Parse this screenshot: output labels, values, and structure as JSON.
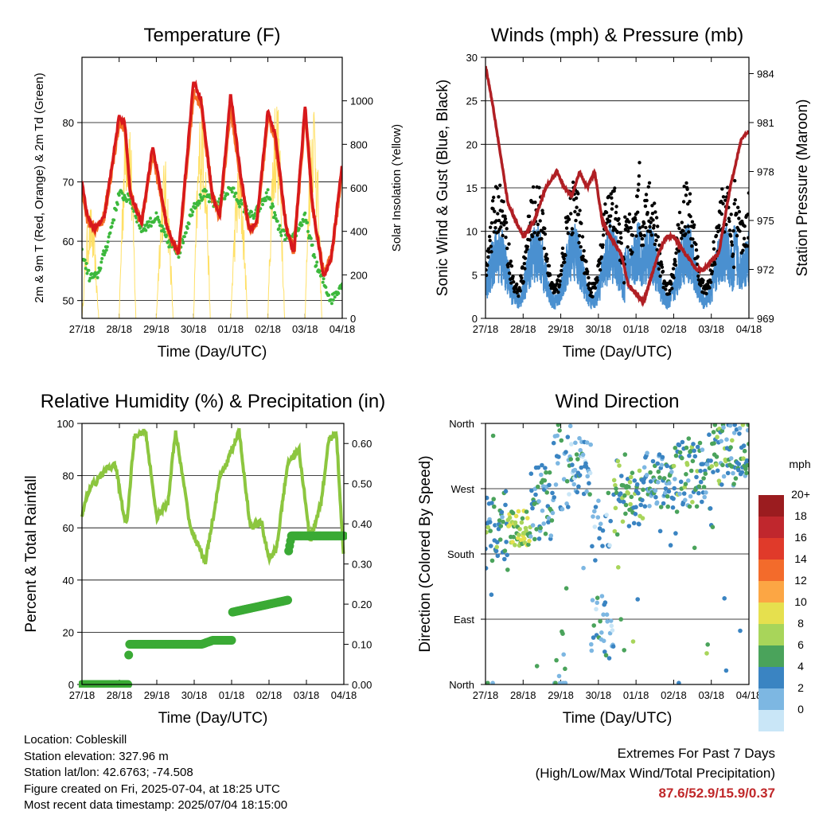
{
  "chart_data": [
    {
      "type": "line",
      "title": "Temperature (F)",
      "xlabel": "Time (Day/UTC)",
      "ylabel": "2m & 9m T (Red, Orange) & 2m Td (Green)",
      "y2label": "Solar Insolation (Yellow)",
      "x_ticks": [
        "27/18",
        "28/18",
        "29/18",
        "30/18",
        "01/18",
        "02/18",
        "03/18",
        "04/18"
      ],
      "ylim": [
        47,
        91
      ],
      "y_ticks": [
        50,
        60,
        70,
        80
      ],
      "y2lim": [
        0,
        1200
      ],
      "y2_ticks": [
        0,
        200,
        400,
        600,
        800,
        1000
      ],
      "series": [
        {
          "key": "t2m",
          "color": "#d7191c",
          "days": [
            0,
            0.15,
            0.35,
            0.6,
            1.0,
            1.15,
            1.3,
            1.6,
            1.9,
            2.05,
            2.3,
            2.6,
            3.0,
            3.2,
            3.5,
            3.7,
            4.0,
            4.25,
            4.5,
            4.7,
            5.0,
            5.2,
            5.5,
            5.7,
            6.0,
            6.2,
            6.4,
            6.5,
            6.7,
            7.0
          ],
          "values": [
            70,
            64,
            62,
            64,
            81,
            80,
            68,
            63,
            76,
            71,
            62,
            58,
            87,
            84,
            68,
            64,
            85,
            72,
            62,
            63,
            82,
            78,
            62,
            58,
            83,
            66,
            58,
            54,
            57,
            73
          ]
        },
        {
          "key": "t9m",
          "color": "#f46d25",
          "days": [
            0,
            0.15,
            0.35,
            0.6,
            1.0,
            1.15,
            1.3,
            1.6,
            1.9,
            2.05,
            2.3,
            2.6,
            3.0,
            3.2,
            3.5,
            3.7,
            4.0,
            4.25,
            4.5,
            4.7,
            5.0,
            5.2,
            5.5,
            5.7,
            6.0,
            6.2,
            6.4,
            6.5,
            6.7,
            7.0
          ],
          "values": [
            69,
            63.5,
            62,
            64,
            80,
            79,
            68,
            63,
            75,
            70,
            62,
            58,
            85,
            83,
            68,
            64,
            83,
            71,
            62,
            63,
            81,
            77,
            62,
            58,
            82,
            66,
            58,
            55,
            57,
            72
          ]
        },
        {
          "key": "td",
          "color": "#3cb83c",
          "days": [
            0,
            0.2,
            0.4,
            0.7,
            1.0,
            1.3,
            1.6,
            2.0,
            2.3,
            2.6,
            3.0,
            3.3,
            3.6,
            4.0,
            4.3,
            4.6,
            5.0,
            5.3,
            5.6,
            6.0,
            6.3,
            6.5,
            6.7,
            6.9,
            7.0
          ],
          "values": [
            58,
            54,
            54,
            60,
            68,
            67,
            62,
            64,
            60,
            58,
            66,
            68,
            66,
            69,
            66,
            64,
            68,
            62,
            60,
            64,
            56,
            53,
            50,
            52,
            53
          ]
        }
      ],
      "insolation": {
        "color": "#ffe066",
        "peaks": [
          520,
          1100,
          740,
          1050,
          730,
          1060,
          1070
        ],
        "units": "W/m2"
      }
    },
    {
      "type": "line",
      "title": "Winds (mph) & Pressure (mb)",
      "xlabel": "Time (Day/UTC)",
      "ylabel": "Sonic Wind & Gust (Blue, Black)",
      "y2label": "Station Pressure (Maroon)",
      "x_ticks": [
        "27/18",
        "28/18",
        "29/18",
        "30/18",
        "01/18",
        "02/18",
        "03/18",
        "04/18"
      ],
      "ylim": [
        0,
        30
      ],
      "y_ticks": [
        0,
        5,
        10,
        15,
        20,
        25,
        30
      ],
      "y2lim": [
        969,
        985
      ],
      "y2_ticks": [
        969,
        972,
        975,
        978,
        981,
        984
      ],
      "series": [
        {
          "key": "pressure",
          "name": "Station Pressure",
          "color": "#b01f24",
          "days": [
            0,
            0.2,
            0.4,
            0.6,
            0.8,
            1.0,
            1.3,
            1.6,
            1.9,
            2.1,
            2.3,
            2.5,
            2.7,
            2.9,
            3.1,
            3.3,
            3.6,
            3.8,
            4.0,
            4.2,
            4.4,
            4.6,
            4.8,
            5.0,
            5.3,
            5.6,
            5.8,
            6.0,
            6.2,
            6.5,
            6.8,
            7.0
          ],
          "values": [
            984.5,
            982,
            979,
            976,
            975,
            974,
            975,
            977,
            978,
            977,
            976.5,
            978,
            977,
            978,
            975,
            974,
            973,
            971,
            970.5,
            970,
            971.5,
            973,
            974,
            974,
            973,
            972,
            972,
            972.5,
            973,
            977,
            980,
            980.5
          ]
        },
        {
          "key": "gust",
          "name": "Gust",
          "color": "#000000"
        },
        {
          "key": "wind",
          "name": "Sonic Wind",
          "color": "#4a90d0"
        }
      ]
    },
    {
      "type": "line",
      "title": "Relative Humidity (%) & Precipitation (in)",
      "xlabel": "Time (Day/UTC)",
      "ylabel": "Percent & Total Rainfall",
      "x_ticks": [
        "27/18",
        "28/18",
        "29/18",
        "30/18",
        "01/18",
        "02/18",
        "03/18",
        "04/18"
      ],
      "ylim": [
        0,
        100
      ],
      "y_ticks": [
        0,
        20,
        40,
        60,
        80,
        100
      ],
      "y2lim": [
        0,
        0.65
      ],
      "y2_ticks": [
        "0.00",
        "0.10",
        "0.20",
        "0.30",
        "0.40",
        "0.50",
        "0.60"
      ],
      "series": [
        {
          "key": "rh",
          "name": "Relative Humidity",
          "color": "#8cc63f",
          "days": [
            0,
            0.2,
            0.4,
            0.6,
            0.9,
            1.1,
            1.2,
            1.4,
            1.7,
            2.0,
            2.3,
            2.5,
            2.9,
            3.3,
            3.7,
            3.9,
            4.2,
            4.5,
            4.8,
            5.0,
            5.2,
            5.5,
            5.8,
            6.1,
            6.4,
            6.6,
            6.8,
            6.95,
            7.0
          ],
          "values": [
            65,
            75,
            78,
            82,
            84,
            66,
            62,
            95,
            97,
            64,
            70,
            97,
            60,
            47,
            80,
            86,
            97,
            60,
            62,
            48,
            52,
            85,
            90,
            55,
            70,
            94,
            96,
            60,
            48
          ]
        },
        {
          "key": "precip",
          "name": "Total Precipitation",
          "color": "#3aaa35",
          "units": "in",
          "days": [
            0,
            1.23,
            1.24,
            1.27,
            3.2,
            3.5,
            4.0,
            4.02,
            5.5,
            5.51,
            5.52,
            5.6,
            7.0
          ],
          "values": [
            0,
            0,
            0.06,
            0.1,
            0.1,
            0.11,
            0.11,
            0.18,
            0.21,
            0.26,
            0.33,
            0.37,
            0.37
          ]
        }
      ]
    },
    {
      "type": "scatter",
      "title": "Wind Direction",
      "xlabel": "Time (Day/UTC)",
      "ylabel": "Direction (Colored By Speed)",
      "x_ticks": [
        "27/18",
        "28/18",
        "29/18",
        "30/18",
        "01/18",
        "02/18",
        "03/18",
        "04/18"
      ],
      "y_ticks": [
        "North",
        "East",
        "South",
        "West",
        "North"
      ],
      "ylim": [
        0,
        360
      ],
      "colorbar": {
        "title": "mph",
        "labels": [
          "20+",
          "18",
          "16",
          "14",
          "12",
          "10",
          "8",
          "6",
          "4",
          "2",
          "0"
        ],
        "colors": [
          "#9b1c1f",
          "#c0272d",
          "#e03a2a",
          "#f36b2b",
          "#fca644",
          "#e6e04e",
          "#a8d55a",
          "#4aa35b",
          "#3a84c2",
          "#7db7e2",
          "#c9e6f7"
        ]
      }
    }
  ],
  "info": {
    "location": "Location: Cobleskill",
    "elevation": "Station elevation: 327.96 m",
    "latlon": "Station lat/lon: 42.6763; -74.508",
    "created": "Figure created on Fri, 2025-07-04, at 18:25 UTC",
    "recent": "Most recent data timestamp: 2025/07/04 18:15:00"
  },
  "extremes": {
    "line1": "Extremes For Past 7 Days",
    "line2": "(High/Low/Max Wind/Total Precipitation)",
    "value": "87.6/52.9/15.9/0.37"
  }
}
